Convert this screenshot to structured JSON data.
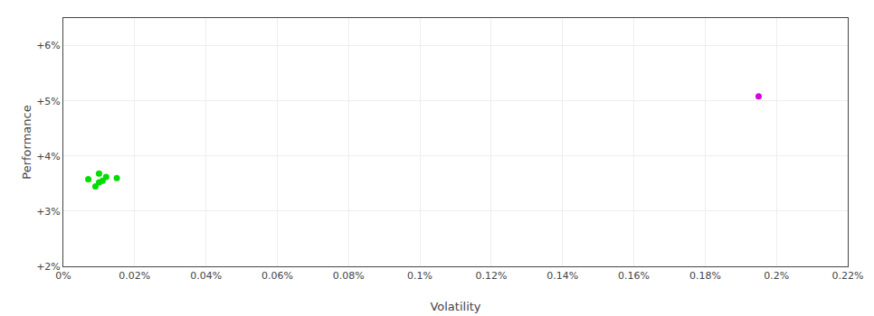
{
  "chart_data": {
    "type": "scatter",
    "xlabel": "Volatility",
    "ylabel": "Performance",
    "xlim": [
      0,
      0.0022
    ],
    "ylim": [
      0.02,
      0.065
    ],
    "xticks": [
      {
        "value": 0,
        "label": "0%"
      },
      {
        "value": 0.0002,
        "label": "0.02%"
      },
      {
        "value": 0.0004,
        "label": "0.04%"
      },
      {
        "value": 0.0006,
        "label": "0.06%"
      },
      {
        "value": 0.0008,
        "label": "0.08%"
      },
      {
        "value": 0.001,
        "label": "0.1%"
      },
      {
        "value": 0.0012,
        "label": "0.12%"
      },
      {
        "value": 0.0014,
        "label": "0.14%"
      },
      {
        "value": 0.0016,
        "label": "0.16%"
      },
      {
        "value": 0.0018,
        "label": "0.18%"
      },
      {
        "value": 0.002,
        "label": "0.2%"
      },
      {
        "value": 0.0022,
        "label": "0.22%"
      }
    ],
    "yticks": [
      {
        "value": 0.02,
        "label": "+2%"
      },
      {
        "value": 0.03,
        "label": "+3%"
      },
      {
        "value": 0.04,
        "label": "+4%"
      },
      {
        "value": 0.05,
        "label": "+5%"
      },
      {
        "value": 0.06,
        "label": "+6%"
      }
    ],
    "grid": true,
    "series": [
      {
        "color": "#00dd00",
        "x": [
          7e-05,
          0.0001,
          0.0001,
          0.00011,
          0.00012,
          9e-05,
          0.00015
        ],
        "values": [
          0.0358,
          0.0368,
          0.0352,
          0.0355,
          0.0362,
          0.0345,
          0.036
        ]
      },
      {
        "color": "#dd00dd",
        "x": [
          0.00195
        ],
        "values": [
          0.0508
        ]
      }
    ]
  }
}
